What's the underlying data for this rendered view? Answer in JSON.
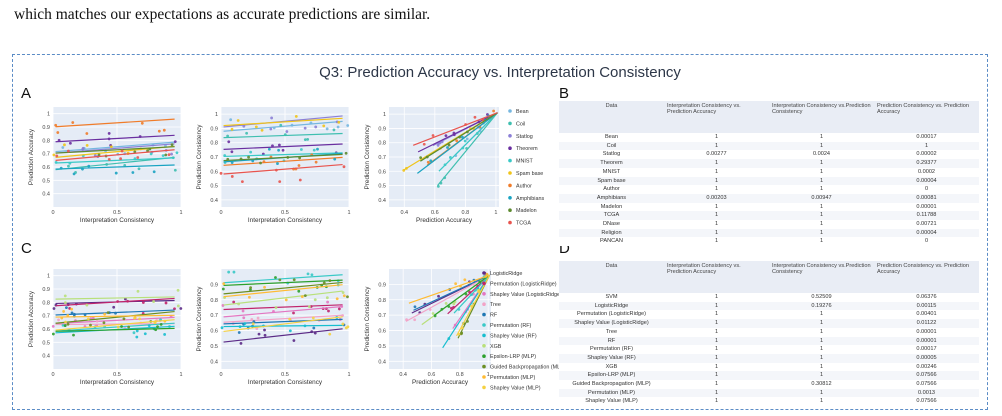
{
  "caption_line": "which matches our expectations as accurate predictions are similar.",
  "figure": {
    "title": "Q3: Prediction Accuracy vs. Interpretation Consistency",
    "panel_letters": [
      "A",
      "B",
      "C",
      "D"
    ],
    "border_color": "#5b8cc6"
  },
  "axis_labels": {
    "interp": "Interpretation Consistency",
    "pred_acc": "Prediction Accuracy",
    "pred_cons": "Prediction Consistency"
  },
  "legend_A": [
    {
      "name": "Bean",
      "color": "#76b7e0"
    },
    {
      "name": "Coil",
      "color": "#3fbfb0"
    },
    {
      "name": "Statlog",
      "color": "#8b7fd6"
    },
    {
      "name": "Theorem",
      "color": "#6a2fa0"
    },
    {
      "name": "MNIST",
      "color": "#39c9c7"
    },
    {
      "name": "Spam base",
      "color": "#f0c419"
    },
    {
      "name": "Author",
      "color": "#f07c2a"
    },
    {
      "name": "Amphibians",
      "color": "#19a3c2"
    },
    {
      "name": "Madelon",
      "color": "#5c8a2e"
    },
    {
      "name": "TCGA",
      "color": "#e8544e"
    }
  ],
  "legend_C": [
    {
      "name": "LogisticRidge",
      "color": "#5b2a86"
    },
    {
      "name": "Permutation (LogisticRidge)",
      "color": "#c0246b"
    },
    {
      "name": "Shapley Value (LogisticRidge)",
      "color": "#e377c2"
    },
    {
      "name": "Tree",
      "color": "#f2a3c7"
    },
    {
      "name": "RF",
      "color": "#1f77b4"
    },
    {
      "name": "Permutation (RF)",
      "color": "#39c9c7"
    },
    {
      "name": "Shapley Value (RF)",
      "color": "#17becf"
    },
    {
      "name": "XGB",
      "color": "#b8e07a"
    },
    {
      "name": "Epsilon-LRP (MLP)",
      "color": "#2ca02c"
    },
    {
      "name": "Guided Backpropagation (ML",
      "color": "#6b8e23"
    },
    {
      "name": "Permutation (MLP)",
      "color": "#ffbb33"
    },
    {
      "name": "Shapley Value (MLP)",
      "color": "#f5d142"
    }
  ],
  "chart_data": [
    {
      "type": "scatter",
      "title": "",
      "xlabel": "Interpretation Consistency",
      "ylabel": "Prediction Accuracy",
      "x_ticks": [
        "0",
        "0.5",
        "1"
      ],
      "y_ticks": [
        "0.4",
        "0.5",
        "0.6",
        "0.7",
        "0.8",
        "0.9",
        "1"
      ],
      "xlim": [
        0,
        1
      ],
      "ylim": [
        0.3,
        1.05
      ]
    },
    {
      "type": "scatter",
      "title": "",
      "xlabel": "Interpretation Consistency",
      "ylabel": "Prediction Consistency",
      "x_ticks": [
        "0",
        "0.5",
        "1"
      ],
      "y_ticks": [
        "0.4",
        "0.5",
        "0.6",
        "0.7",
        "0.8",
        "0.9",
        "1"
      ],
      "xlim": [
        0,
        1
      ],
      "ylim": [
        0.35,
        1.05
      ]
    },
    {
      "type": "scatter",
      "title": "",
      "xlabel": "Prediction Accuracy",
      "ylabel": "Prediction Consistency",
      "x_ticks": [
        "0.4",
        "0.6",
        "0.8",
        "1"
      ],
      "y_ticks": [
        "0.4",
        "0.5",
        "0.6",
        "0.7",
        "0.8",
        "0.9",
        "1"
      ],
      "xlim": [
        0.3,
        1.02
      ],
      "ylim": [
        0.35,
        1.05
      ]
    },
    {
      "type": "scatter",
      "title": "",
      "xlabel": "Interpretation Consistency",
      "ylabel": "Prediction Accuracy",
      "x_ticks": [
        "0",
        "0.5",
        "1"
      ],
      "y_ticks": [
        "0.4",
        "0.5",
        "0.6",
        "0.7",
        "0.8",
        "0.9",
        "1"
      ],
      "xlim": [
        0,
        1
      ],
      "ylim": [
        0.3,
        1.05
      ]
    },
    {
      "type": "scatter",
      "title": "",
      "xlabel": "Interpretation Consistency",
      "ylabel": "Prediction Consistency",
      "x_ticks": [
        "0",
        "0.5",
        "1"
      ],
      "y_ticks": [
        "0.4",
        "0.5",
        "0.6",
        "0.7",
        "0.8",
        "0.9"
      ],
      "xlim": [
        0,
        1
      ],
      "ylim": [
        0.35,
        1.0
      ]
    },
    {
      "type": "scatter",
      "title": "",
      "xlabel": "Prediction Accuracy",
      "ylabel": "Prediction Consistency",
      "x_ticks": [
        "0.4",
        "0.6",
        "0.8",
        "1"
      ],
      "y_ticks": [
        "0.4",
        "0.5",
        "0.6",
        "0.7",
        "0.8",
        "0.9"
      ],
      "xlim": [
        0.3,
        1.02
      ],
      "ylim": [
        0.35,
        1.0
      ]
    }
  ],
  "table_B": {
    "headers": [
      "Data",
      "Interpretation Consistency vs. Prediction Accuracy",
      "Interpretation Consistency vs.Prediction Consistency",
      "Prediction Consistency vs. Prediction Accuracy"
    ],
    "rows": [
      [
        "Bean",
        "1",
        "1",
        "0.00017"
      ],
      [
        "Coil",
        "1",
        "1",
        "1"
      ],
      [
        "Statlog",
        "0.00277",
        "0.0024",
        "0.00002"
      ],
      [
        "Theorem",
        "1",
        "1",
        "0.29377"
      ],
      [
        "MNIST",
        "1",
        "1",
        "0.0002"
      ],
      [
        "Spam base",
        "1",
        "1",
        "0.00004"
      ],
      [
        "Author",
        "1",
        "1",
        "0"
      ],
      [
        "Amphibians",
        "0.00203",
        "0.00947",
        "0.00081"
      ],
      [
        "Madelon",
        "1",
        "1",
        "0.00001"
      ],
      [
        "TCGA",
        "1",
        "1",
        "0.11788"
      ],
      [
        "DNase",
        "1",
        "1",
        "0.00721"
      ],
      [
        "Religion",
        "1",
        "1",
        "0.00004"
      ],
      [
        "PANCAN",
        "1",
        "1",
        "0"
      ]
    ]
  },
  "table_D": {
    "headers": [
      "Data",
      "Interpretation Consistency vs. Prediction Accuracy",
      "Interpretation Consistency vs.Prediction Consistency",
      "Prediction Consistency vs. Prediction Accuracy"
    ],
    "rows": [
      [
        "SVM",
        "1",
        "0.52509",
        "0.06376"
      ],
      [
        "LogisticRidge",
        "1",
        "0.19276",
        "0.00115"
      ],
      [
        "Permutation (LogisticRidge)",
        "1",
        "1",
        "0.00401"
      ],
      [
        "Shapley Value (LogisticRidge)",
        "1",
        "1",
        "0.01122"
      ],
      [
        "Tree",
        "1",
        "1",
        "0.00001"
      ],
      [
        "RF",
        "1",
        "1",
        "0.00001"
      ],
      [
        "Permutation (RF)",
        "1",
        "1",
        "0.00017"
      ],
      [
        "Shapley Value (RF)",
        "1",
        "1",
        "0.00005"
      ],
      [
        "XGB",
        "1",
        "1",
        "0.00246"
      ],
      [
        "Epsilon-LRP (MLP)",
        "1",
        "1",
        "0.07566"
      ],
      [
        "Guided Backpropagation (MLP)",
        "1",
        "0.30812",
        "0.07566"
      ],
      [
        "Permutation (MLP)",
        "1",
        "1",
        "0.0013"
      ],
      [
        "Shapley Value (MLP)",
        "1",
        "1",
        "0.07566"
      ]
    ]
  }
}
